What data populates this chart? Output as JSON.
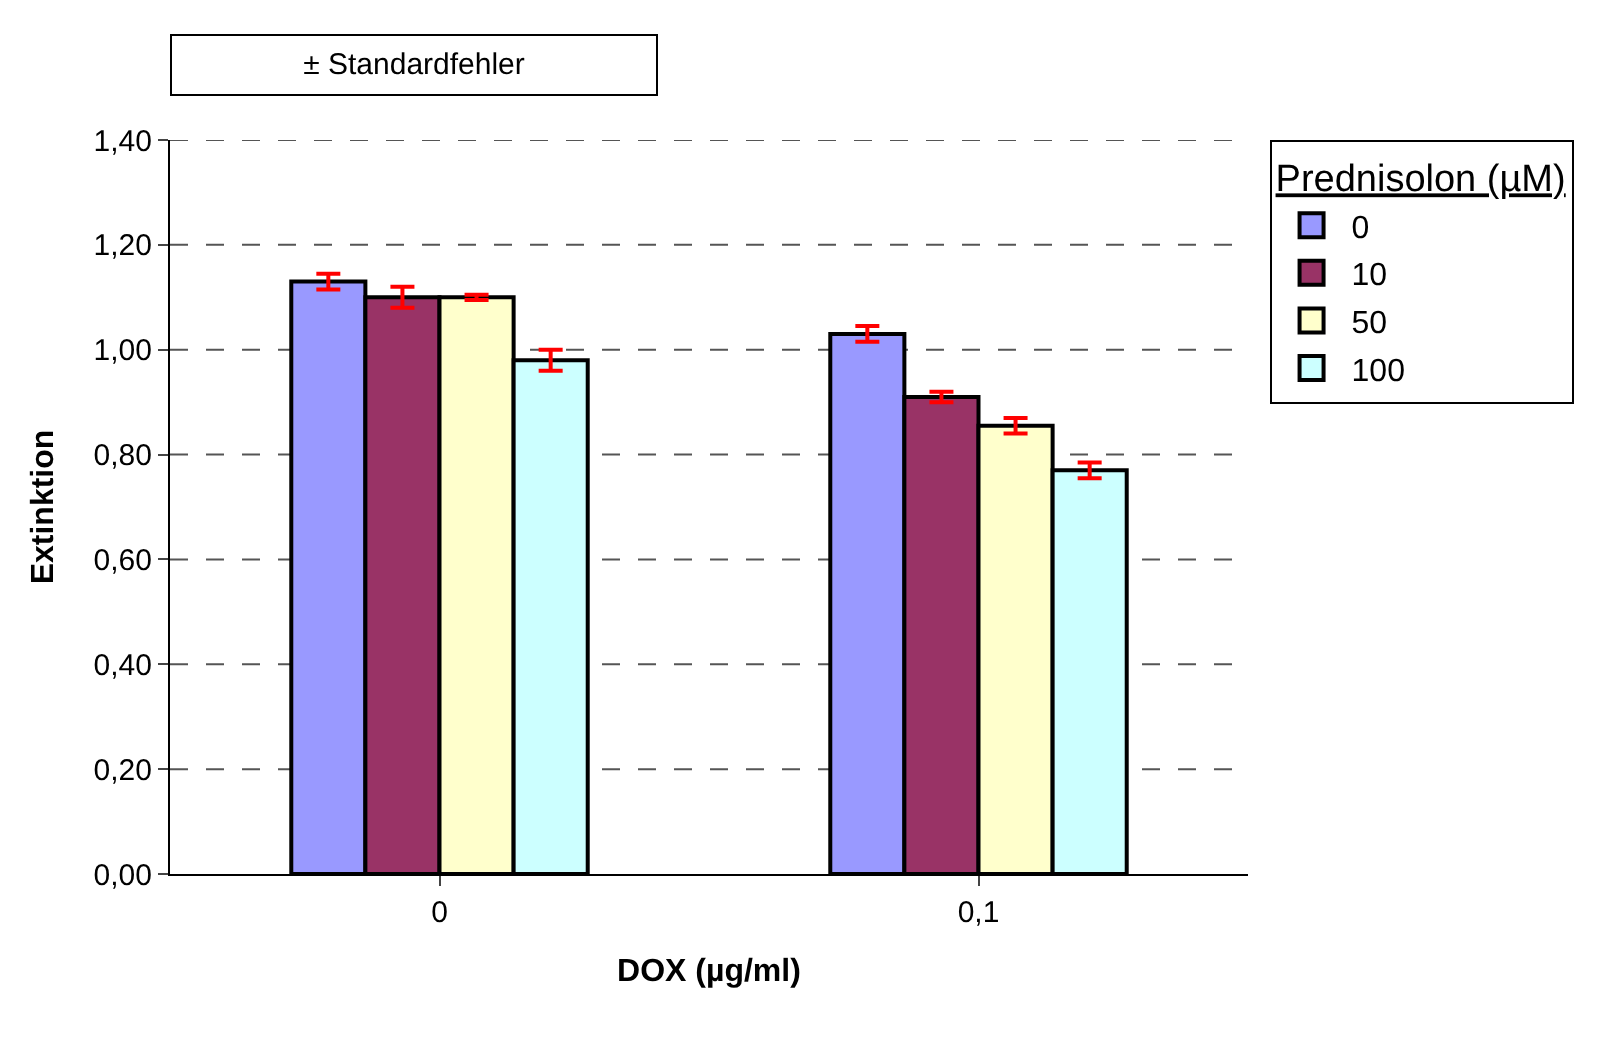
{
  "chart_data": {
    "type": "bar",
    "xlabel": "DOX (µg/ml)",
    "ylabel": "Extinktion",
    "legend_title": "Prednisolon (µM)",
    "categories": [
      "0",
      "0,1"
    ],
    "series": [
      {
        "name": "0",
        "color": "#9999ff",
        "values": [
          1.13,
          1.03
        ],
        "errors": [
          0.015,
          0.015
        ]
      },
      {
        "name": "10",
        "color": "#993366",
        "values": [
          1.1,
          0.91
        ],
        "errors": [
          0.02,
          0.01
        ]
      },
      {
        "name": "50",
        "color": "#ffffcc",
        "values": [
          1.1,
          0.855
        ],
        "errors": [
          0.005,
          0.015
        ]
      },
      {
        "name": "100",
        "color": "#ccffff",
        "values": [
          0.98,
          0.77
        ],
        "errors": [
          0.02,
          0.015
        ]
      }
    ],
    "ylim": [
      0,
      1.4
    ],
    "yticks": [
      {
        "value": 0,
        "label": "0,00"
      },
      {
        "value": 0.2,
        "label": "0,20"
      },
      {
        "value": 0.4,
        "label": "0,40"
      },
      {
        "value": 0.6,
        "label": "0,60"
      },
      {
        "value": 0.8,
        "label": "0,80"
      },
      {
        "value": 1.0,
        "label": "1,00"
      },
      {
        "value": 1.2,
        "label": "1,20"
      },
      {
        "value": 1.4,
        "label": "1,40"
      }
    ],
    "grid": "y",
    "line_style": "dashed",
    "legend": "top right",
    "annotations": [
      "± Standardfehler"
    ]
  }
}
